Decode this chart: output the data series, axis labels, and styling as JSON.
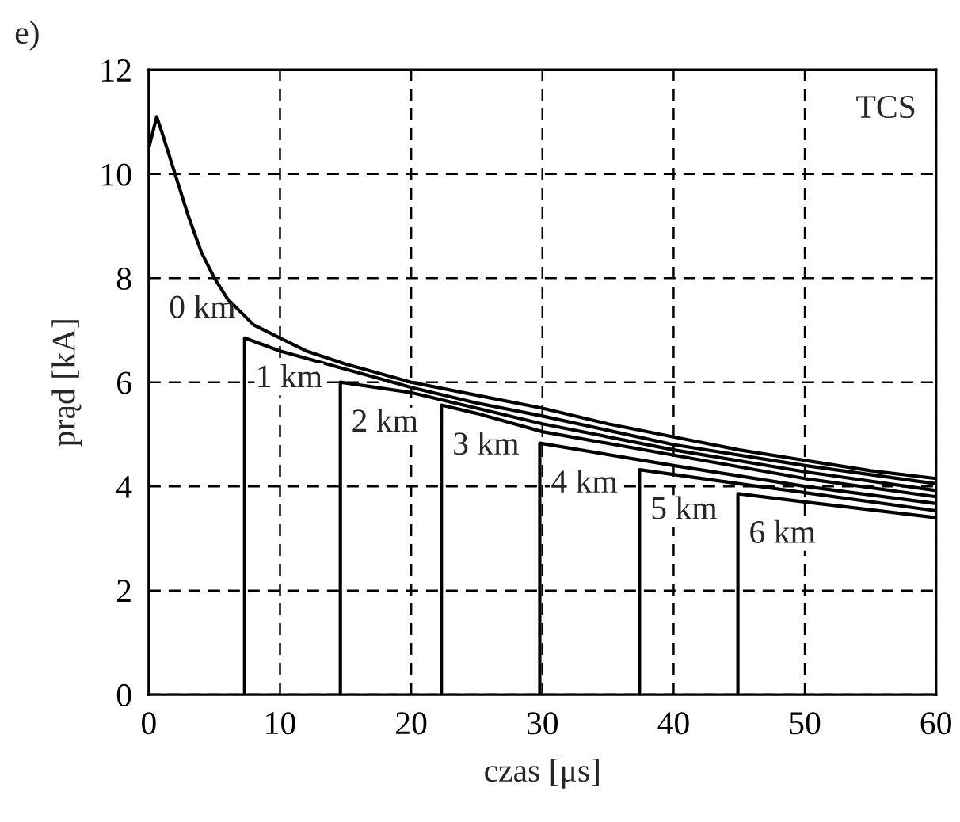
{
  "chart_data": {
    "type": "line",
    "xlabel": "czas [μs]",
    "ylabel": "prąd [kA]",
    "xlim": [
      0,
      60
    ],
    "ylim": [
      0,
      12
    ],
    "xticks": [
      0,
      10,
      20,
      30,
      40,
      50,
      60
    ],
    "yticks": [
      0,
      2,
      4,
      6,
      8,
      10,
      12
    ],
    "grid": true,
    "legend": false,
    "line_style": "solid",
    "marker": "none",
    "series": [
      {
        "name": "0 km",
        "color": "#000000",
        "x": [
          0,
          0,
          0.6,
          1,
          2,
          3,
          4,
          5,
          6,
          8,
          10,
          12,
          15,
          20,
          25,
          30,
          35,
          40,
          45,
          50,
          55,
          60
        ],
        "values": [
          0,
          10.5,
          11.1,
          10.8,
          10.0,
          9.2,
          8.5,
          8.0,
          7.6,
          7.1,
          6.85,
          6.6,
          6.35,
          6.0,
          5.75,
          5.5,
          5.2,
          4.95,
          4.7,
          4.5,
          4.3,
          4.15
        ]
      },
      {
        "name": "1 km",
        "color": "#000000",
        "x": [
          7.3,
          7.3,
          10,
          15,
          20,
          25,
          30,
          40,
          50,
          60
        ],
        "values": [
          0,
          6.85,
          6.6,
          6.25,
          5.9,
          5.6,
          5.35,
          4.8,
          4.4,
          4.05
        ]
      },
      {
        "name": "2 km",
        "color": "#000000",
        "x": [
          14.6,
          14.6,
          20,
          25,
          30,
          40,
          50,
          60
        ],
        "values": [
          0,
          6.0,
          5.8,
          5.5,
          5.2,
          4.7,
          4.28,
          3.92
        ]
      },
      {
        "name": "3 km",
        "color": "#000000",
        "x": [
          22.3,
          22.3,
          25,
          30,
          40,
          50,
          60
        ],
        "values": [
          0,
          5.56,
          5.4,
          5.05,
          4.6,
          4.15,
          3.8
        ]
      },
      {
        "name": "4 km",
        "color": "#000000",
        "x": [
          29.8,
          29.8,
          40,
          50,
          60
        ],
        "values": [
          0,
          4.83,
          4.4,
          4.0,
          3.67
        ]
      },
      {
        "name": "5 km",
        "color": "#000000",
        "x": [
          37.4,
          37.4,
          45,
          50,
          60
        ],
        "values": [
          0,
          4.32,
          4.05,
          3.88,
          3.53
        ]
      },
      {
        "name": "6 km",
        "color": "#000000",
        "x": [
          44.9,
          44.9,
          50,
          60
        ],
        "values": [
          0,
          3.86,
          3.7,
          3.4
        ]
      }
    ],
    "annotations": [
      "e)",
      "TCS"
    ]
  }
}
